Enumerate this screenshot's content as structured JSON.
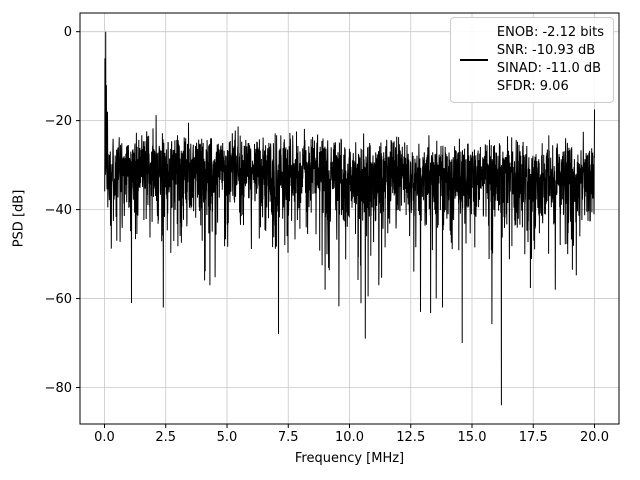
{
  "legend": {
    "lines": [
      "ENOB: -2.12 bits",
      "SNR: -10.93 dB",
      "SINAD: -11.0 dB",
      "SFDR: 9.06"
    ],
    "line_color": "#000000"
  },
  "chart_data": {
    "type": "line",
    "title": "",
    "xlabel": "Frequency [MHz]",
    "ylabel": "PSD [dB]",
    "xlim": [
      -1,
      21
    ],
    "ylim": [
      -88.2,
      4.2
    ],
    "x_ticks": [
      0,
      2.5,
      5,
      7.5,
      10,
      12.5,
      15,
      17.5,
      20
    ],
    "x_tick_labels": [
      "0.0",
      "2.5",
      "5.0",
      "7.5",
      "10.0",
      "12.5",
      "15.0",
      "17.5",
      "20.0"
    ],
    "y_ticks": [
      0,
      -20,
      -40,
      -60,
      -80
    ],
    "y_tick_labels": [
      "0",
      "−20",
      "−40",
      "−60",
      "−80"
    ],
    "grid": true,
    "grid_color": "#c8c8c8",
    "legend_position": "upper right",
    "metrics": {
      "ENOB": "-2.12 bits",
      "SNR": "-10.93 dB",
      "SINAD": "-11.0 dB",
      "SFDR": "9.06"
    },
    "series": [
      {
        "name": "ENOB: -2.12 bits / SNR: -10.93 dB / SINAD: -11.0 dB / SFDR: 9.06",
        "color": "#000000",
        "description": "Dense random noise floor spanning approx -25 to -50 dB across 0-20 MHz; sharp 0 dB peak at DC; frequent downward spikes to -55..-70 dB; deepest dip approx -84 dB near 16.2 MHz; upward spike to approx -17 dB at 20 MHz",
        "noise": {
          "seed": 1337,
          "points": 2800,
          "x_start": 0,
          "x_end": 20,
          "floor_db_start": -29,
          "floor_db_end": -31.5,
          "clip_db": -80
        },
        "features": [
          {
            "x": 0.02,
            "db": -6
          },
          {
            "x": 0.05,
            "db": 0
          },
          {
            "x": 0.08,
            "db": -12
          },
          {
            "x": 0.12,
            "db": -18
          },
          {
            "x": 0.5,
            "db": -47
          },
          {
            "x": 1.1,
            "db": -61
          },
          {
            "x": 2.4,
            "db": -62
          },
          {
            "x": 4.3,
            "db": -57
          },
          {
            "x": 7.1,
            "db": -68
          },
          {
            "x": 9.0,
            "db": -58
          },
          {
            "x": 11.2,
            "db": -57
          },
          {
            "x": 12.9,
            "db": -63
          },
          {
            "x": 13.8,
            "db": -62
          },
          {
            "x": 14.6,
            "db": -70
          },
          {
            "x": 16.2,
            "db": -84
          },
          {
            "x": 18.4,
            "db": -58
          },
          {
            "x": 20.0,
            "db": -17.5
          }
        ]
      }
    ]
  }
}
